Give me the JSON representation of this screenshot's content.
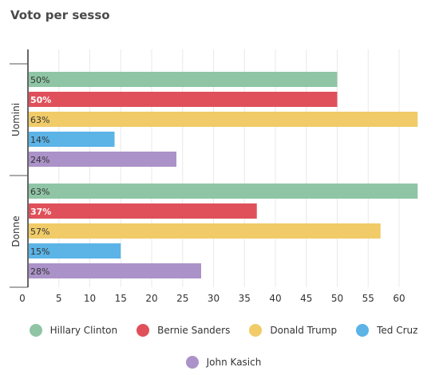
{
  "chart_data": {
    "type": "bar",
    "orientation": "horizontal",
    "title": "Voto per sesso",
    "groups": [
      "Uomini",
      "Donne"
    ],
    "series": [
      {
        "name": "Hillary Clinton",
        "color": "#8fc5a5",
        "values": [
          50,
          63
        ],
        "labels": [
          "50%",
          "63%"
        ]
      },
      {
        "name": "Bernie Sanders",
        "color": "#e0505a",
        "values": [
          50,
          37
        ],
        "labels": [
          "50%",
          "37%"
        ]
      },
      {
        "name": "Donald Trump",
        "color": "#f0cb68",
        "values": [
          63,
          57
        ],
        "labels": [
          "63%",
          "57%"
        ]
      },
      {
        "name": "Ted Cruz",
        "color": "#5bb3e6",
        "values": [
          14,
          15
        ],
        "labels": [
          "14%",
          "15%"
        ]
      },
      {
        "name": "John Kasich",
        "color": "#ab92c8",
        "values": [
          24,
          28
        ],
        "labels": [
          "24%",
          "28%"
        ]
      }
    ],
    "xlim": [
      0,
      64
    ],
    "xticks": [
      0,
      5,
      10,
      15,
      20,
      25,
      30,
      35,
      40,
      45,
      50,
      55,
      60
    ],
    "grid": true,
    "legend_position": "bottom"
  }
}
